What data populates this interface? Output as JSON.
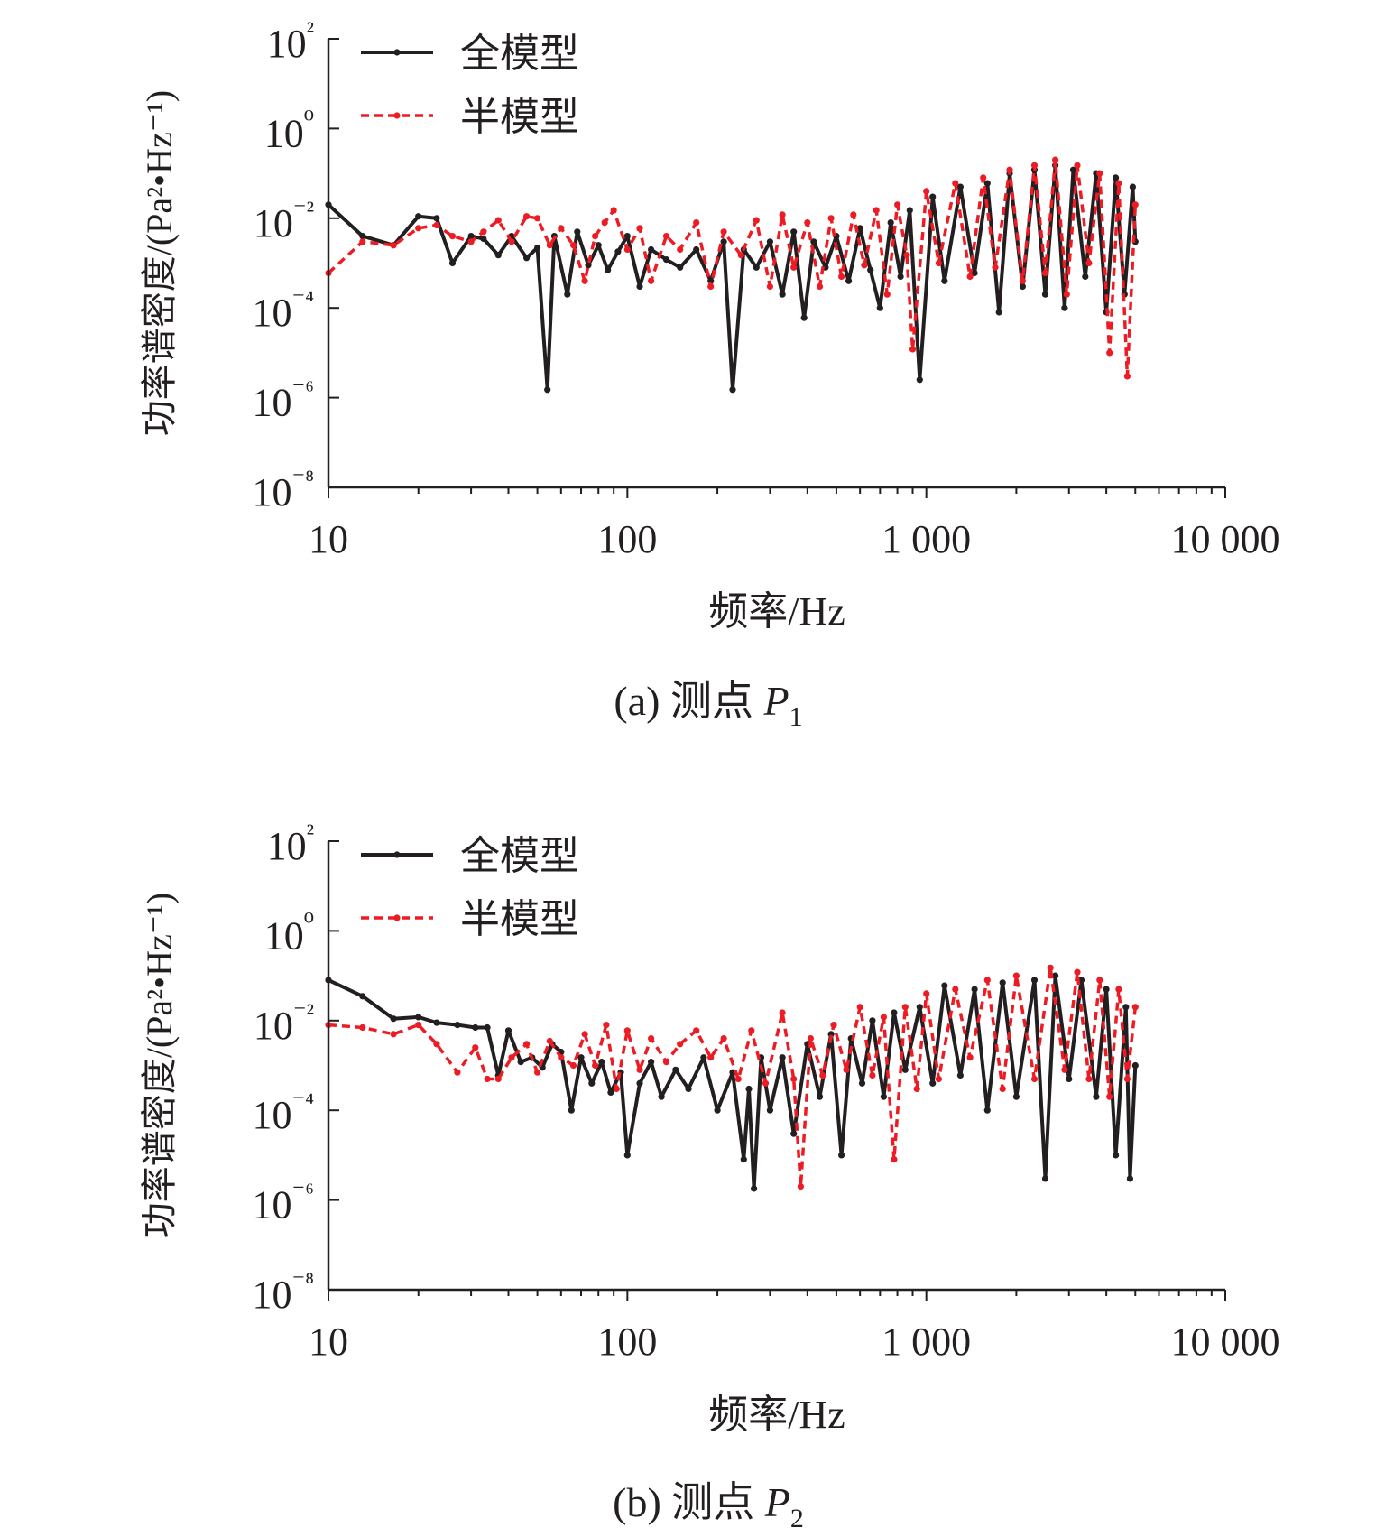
{
  "chart_data": [
    {
      "type": "line",
      "caption": "(a) 测点 P",
      "caption_subscript": "1",
      "xlabel": "频率/Hz",
      "ylabel": "功率谱密度/(Pa²•Hz⁻¹)",
      "xscale": "log",
      "yscale": "log",
      "xlim": [
        10,
        10000
      ],
      "ylim": [
        1e-08,
        100
      ],
      "x_ticks": [
        10,
        100,
        1000,
        10000
      ],
      "x_tick_labels": [
        "10",
        "100",
        "1 000",
        "10 000"
      ],
      "y_ticks": [
        1e-08,
        1e-06,
        0.0001,
        0.01,
        1,
        100
      ],
      "y_tick_labels": [
        "10⁻⁸",
        "10⁻⁶",
        "10⁻⁴",
        "10⁻²",
        "10⁰",
        "10²"
      ],
      "legend": "top-left",
      "grid": false,
      "series": [
        {
          "name": "全模型",
          "color": "#231f20",
          "style": "solid",
          "points": [
            [
              10,
              0.02
            ],
            [
              13,
              0.004
            ],
            [
              16.5,
              0.0025
            ],
            [
              20,
              0.011
            ],
            [
              23,
              0.01
            ],
            [
              26,
              0.001
            ],
            [
              30,
              0.004
            ],
            [
              33,
              0.0035
            ],
            [
              37,
              0.0015
            ],
            [
              41,
              0.004
            ],
            [
              46,
              0.0013
            ],
            [
              50,
              0.0022
            ],
            [
              54,
              1.5e-06
            ],
            [
              57,
              0.004
            ],
            [
              63,
              0.0002
            ],
            [
              68,
              0.005
            ],
            [
              74,
              0.0009
            ],
            [
              80,
              0.0025
            ],
            [
              86,
              0.0007
            ],
            [
              93,
              0.0018
            ],
            [
              100,
              0.004
            ],
            [
              110,
              0.0003
            ],
            [
              120,
              0.002
            ],
            [
              135,
              0.0012
            ],
            [
              150,
              0.0008
            ],
            [
              170,
              0.002
            ],
            [
              190,
              0.0004
            ],
            [
              210,
              0.003
            ],
            [
              225,
              1.5e-06
            ],
            [
              245,
              0.002
            ],
            [
              270,
              0.0008
            ],
            [
              300,
              0.003
            ],
            [
              330,
              0.0002
            ],
            [
              360,
              0.005
            ],
            [
              390,
              6e-05
            ],
            [
              420,
              0.003
            ],
            [
              460,
              0.0008
            ],
            [
              500,
              0.004
            ],
            [
              550,
              0.0004
            ],
            [
              600,
              0.006
            ],
            [
              650,
              0.0007
            ],
            [
              700,
              0.0001
            ],
            [
              760,
              0.008
            ],
            [
              820,
              0.0005
            ],
            [
              880,
              0.015
            ],
            [
              950,
              2.5e-06
            ],
            [
              1050,
              0.03
            ],
            [
              1150,
              0.0004
            ],
            [
              1300,
              0.05
            ],
            [
              1450,
              0.0006
            ],
            [
              1600,
              0.06
            ],
            [
              1750,
              8e-05
            ],
            [
              1900,
              0.1
            ],
            [
              2100,
              0.0003
            ],
            [
              2300,
              0.12
            ],
            [
              2500,
              0.0002
            ],
            [
              2700,
              0.15
            ],
            [
              2900,
              0.0001
            ],
            [
              3100,
              0.12
            ],
            [
              3400,
              0.0005
            ],
            [
              3700,
              0.1
            ],
            [
              4000,
              8e-05
            ],
            [
              4300,
              0.08
            ],
            [
              4600,
              0.0002
            ],
            [
              4900,
              0.05
            ],
            [
              5000,
              0.003
            ]
          ]
        },
        {
          "name": "半模型",
          "color": "#ed1c24",
          "style": "dashed",
          "points": [
            [
              10,
              0.0006
            ],
            [
              13,
              0.003
            ],
            [
              16.5,
              0.0025
            ],
            [
              20,
              0.006
            ],
            [
              23,
              0.007
            ],
            [
              26,
              0.004
            ],
            [
              30,
              0.003
            ],
            [
              33,
              0.005
            ],
            [
              37,
              0.009
            ],
            [
              41,
              0.003
            ],
            [
              46,
              0.011
            ],
            [
              50,
              0.01
            ],
            [
              55,
              0.0025
            ],
            [
              60,
              0.006
            ],
            [
              66,
              0.0025
            ],
            [
              72,
              0.0004
            ],
            [
              78,
              0.004
            ],
            [
              84,
              0.008
            ],
            [
              90,
              0.015
            ],
            [
              100,
              0.002
            ],
            [
              110,
              0.006
            ],
            [
              120,
              0.0004
            ],
            [
              135,
              0.004
            ],
            [
              150,
              0.002
            ],
            [
              170,
              0.008
            ],
            [
              190,
              0.0003
            ],
            [
              210,
              0.005
            ],
            [
              240,
              0.0015
            ],
            [
              270,
              0.009
            ],
            [
              300,
              0.0003
            ],
            [
              330,
              0.012
            ],
            [
              360,
              0.0008
            ],
            [
              400,
              0.008
            ],
            [
              440,
              0.0003
            ],
            [
              480,
              0.01
            ],
            [
              520,
              0.0005
            ],
            [
              570,
              0.012
            ],
            [
              620,
              0.0009
            ],
            [
              680,
              0.015
            ],
            [
              740,
              0.0002
            ],
            [
              800,
              0.02
            ],
            [
              860,
              0.0015
            ],
            [
              900,
              1.2e-05
            ],
            [
              1000,
              0.04
            ],
            [
              1100,
              0.001
            ],
            [
              1250,
              0.06
            ],
            [
              1400,
              0.0005
            ],
            [
              1550,
              0.08
            ],
            [
              1700,
              0.0008
            ],
            [
              1900,
              0.12
            ],
            [
              2100,
              0.0004
            ],
            [
              2300,
              0.15
            ],
            [
              2500,
              0.0006
            ],
            [
              2700,
              0.2
            ],
            [
              2950,
              0.0002
            ],
            [
              3200,
              0.15
            ],
            [
              3500,
              0.001
            ],
            [
              3800,
              0.1
            ],
            [
              4100,
              1e-05
            ],
            [
              4400,
              0.06
            ],
            [
              4700,
              3e-06
            ],
            [
              5000,
              0.02
            ]
          ]
        }
      ]
    },
    {
      "type": "line",
      "caption": "(b) 测点 P",
      "caption_subscript": "2",
      "xlabel": "频率/Hz",
      "ylabel": "功率谱密度/(Pa²•Hz⁻¹)",
      "xscale": "log",
      "yscale": "log",
      "xlim": [
        10,
        10000
      ],
      "ylim": [
        1e-08,
        100
      ],
      "x_ticks": [
        10,
        100,
        1000,
        10000
      ],
      "x_tick_labels": [
        "10",
        "100",
        "1 000",
        "10 000"
      ],
      "y_ticks": [
        1e-08,
        1e-06,
        0.0001,
        0.01,
        1,
        100
      ],
      "y_tick_labels": [
        "10⁻⁸",
        "10⁻⁶",
        "10⁻⁴",
        "10⁻²",
        "10⁰",
        "10²"
      ],
      "legend": "top-left",
      "grid": false,
      "series": [
        {
          "name": "全模型",
          "color": "#231f20",
          "style": "solid",
          "points": [
            [
              10,
              0.08
            ],
            [
              13,
              0.035
            ],
            [
              16.5,
              0.011
            ],
            [
              20,
              0.012
            ],
            [
              23,
              0.009
            ],
            [
              27,
              0.008
            ],
            [
              31,
              0.007
            ],
            [
              34,
              0.007
            ],
            [
              37,
              0.0006
            ],
            [
              40,
              0.006
            ],
            [
              44,
              0.0012
            ],
            [
              48,
              0.0015
            ],
            [
              52,
              0.0009
            ],
            [
              56,
              0.003
            ],
            [
              60,
              0.002
            ],
            [
              65,
              0.0001
            ],
            [
              70,
              0.0015
            ],
            [
              76,
              0.0004
            ],
            [
              82,
              0.0012
            ],
            [
              88,
              0.00025
            ],
            [
              95,
              0.0007
            ],
            [
              100,
              1e-05
            ],
            [
              110,
              0.0004
            ],
            [
              120,
              0.0012
            ],
            [
              130,
              0.0002
            ],
            [
              145,
              0.0008
            ],
            [
              160,
              0.0003
            ],
            [
              180,
              0.0015
            ],
            [
              200,
              0.0001
            ],
            [
              225,
              0.0007
            ],
            [
              245,
              8e-06
            ],
            [
              255,
              0.0003
            ],
            [
              265,
              1.8e-06
            ],
            [
              280,
              0.0015
            ],
            [
              300,
              0.0001
            ],
            [
              330,
              0.0015
            ],
            [
              360,
              3e-05
            ],
            [
              400,
              0.003
            ],
            [
              440,
              0.0002
            ],
            [
              480,
              0.005
            ],
            [
              520,
              1e-05
            ],
            [
              560,
              0.004
            ],
            [
              610,
              0.0004
            ],
            [
              660,
              0.01
            ],
            [
              720,
              0.0002
            ],
            [
              780,
              0.015
            ],
            [
              850,
              0.0008
            ],
            [
              950,
              0.02
            ],
            [
              1050,
              0.0004
            ],
            [
              1150,
              0.06
            ],
            [
              1300,
              0.0006
            ],
            [
              1450,
              0.05
            ],
            [
              1600,
              0.0001
            ],
            [
              1800,
              0.07
            ],
            [
              2000,
              0.0002
            ],
            [
              2300,
              0.08
            ],
            [
              2500,
              3e-06
            ],
            [
              2700,
              0.1
            ],
            [
              3000,
              0.0005
            ],
            [
              3300,
              0.08
            ],
            [
              3700,
              0.0002
            ],
            [
              4000,
              0.05
            ],
            [
              4300,
              1e-05
            ],
            [
              4650,
              0.02
            ],
            [
              4800,
              3e-06
            ],
            [
              5000,
              0.001
            ]
          ]
        },
        {
          "name": "半模型",
          "color": "#ed1c24",
          "style": "dashed",
          "points": [
            [
              10,
              0.008
            ],
            [
              13,
              0.007
            ],
            [
              16.5,
              0.005
            ],
            [
              20,
              0.008
            ],
            [
              23,
              0.003
            ],
            [
              27,
              0.0007
            ],
            [
              31,
              0.0025
            ],
            [
              34,
              0.0005
            ],
            [
              37,
              0.0005
            ],
            [
              41,
              0.0015
            ],
            [
              46,
              0.003
            ],
            [
              50,
              0.0007
            ],
            [
              55,
              0.0035
            ],
            [
              60,
              0.0015
            ],
            [
              66,
              0.001
            ],
            [
              72,
              0.005
            ],
            [
              78,
              0.001
            ],
            [
              85,
              0.008
            ],
            [
              92,
              0.0003
            ],
            [
              100,
              0.006
            ],
            [
              110,
              0.0008
            ],
            [
              120,
              0.004
            ],
            [
              135,
              0.0012
            ],
            [
              150,
              0.003
            ],
            [
              170,
              0.006
            ],
            [
              190,
              0.0015
            ],
            [
              210,
              0.004
            ],
            [
              235,
              0.0005
            ],
            [
              260,
              0.006
            ],
            [
              290,
              0.0004
            ],
            [
              330,
              0.015
            ],
            [
              360,
              0.0005
            ],
            [
              380,
              2e-06
            ],
            [
              410,
              0.004
            ],
            [
              450,
              0.0006
            ],
            [
              490,
              0.008
            ],
            [
              540,
              0.0008
            ],
            [
              600,
              0.02
            ],
            [
              660,
              0.0006
            ],
            [
              720,
              0.012
            ],
            [
              780,
              8e-06
            ],
            [
              850,
              0.02
            ],
            [
              930,
              0.0003
            ],
            [
              1000,
              0.04
            ],
            [
              1100,
              0.0005
            ],
            [
              1250,
              0.05
            ],
            [
              1400,
              0.0015
            ],
            [
              1600,
              0.08
            ],
            [
              1800,
              0.0003
            ],
            [
              2000,
              0.1
            ],
            [
              2300,
              0.0005
            ],
            [
              2600,
              0.15
            ],
            [
              2900,
              0.0008
            ],
            [
              3200,
              0.12
            ],
            [
              3500,
              0.0005
            ],
            [
              3800,
              0.08
            ],
            [
              4100,
              0.0002
            ],
            [
              4400,
              0.05
            ],
            [
              4700,
              0.0005
            ],
            [
              5000,
              0.02
            ]
          ]
        }
      ]
    }
  ]
}
